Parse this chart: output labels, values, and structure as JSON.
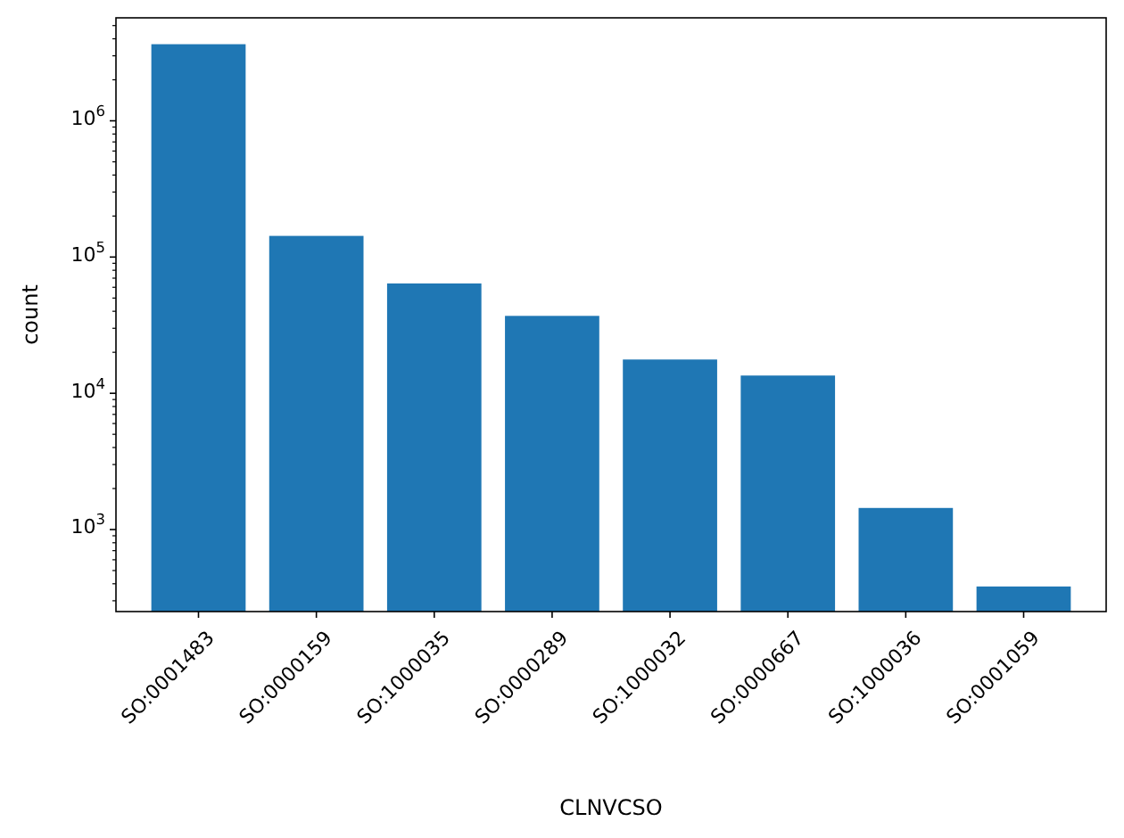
{
  "chart_data": {
    "type": "bar",
    "xlabel": "CLNVCSO",
    "ylabel": "count",
    "categories": [
      "SO:0001483",
      "SO:0000159",
      "SO:1000035",
      "SO:0000289",
      "SO:1000032",
      "SO:0000667",
      "SO:1000036",
      "SO:0001059"
    ],
    "values": [
      3650000,
      143000,
      64000,
      37000,
      17700,
      13500,
      1440,
      382
    ],
    "color": "#1f77b4",
    "log": true,
    "ylim": [
      250,
      5700000
    ],
    "yticks": [
      {
        "value": 1000,
        "label": "10$^{3}$"
      },
      {
        "value": 10000,
        "label": "10$^{4}$"
      },
      {
        "value": 100000,
        "label": "10$^{5}$"
      },
      {
        "value": 1000000,
        "label": "10$^{6}$"
      }
    ],
    "grid": false
  }
}
